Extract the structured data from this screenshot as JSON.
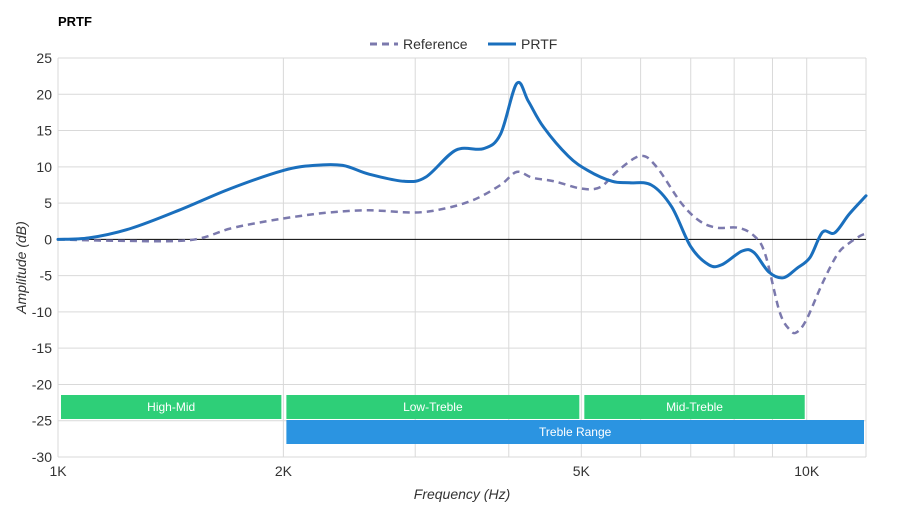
{
  "chart_data": {
    "type": "line",
    "title": "PRTF",
    "xlabel": "Frequency (Hz)",
    "ylabel": "Amplitude (dB)",
    "xscale": "log",
    "xlim": [
      1000,
      12000
    ],
    "ylim": [
      -30,
      25
    ],
    "grid": true,
    "legend_position": "top-center",
    "x_ticks": [
      {
        "value": 1000,
        "label": "1K"
      },
      {
        "value": 2000,
        "label": "2K"
      },
      {
        "value": 5000,
        "label": "5K"
      },
      {
        "value": 10000,
        "label": "10K"
      }
    ],
    "x_minor_gridlines": [
      3000,
      4000,
      6000,
      7000,
      8000,
      9000,
      12000
    ],
    "y_ticks": [
      25,
      20,
      15,
      10,
      5,
      0,
      -5,
      -10,
      -15,
      -20,
      -25,
      -30
    ],
    "series": [
      {
        "name": "Reference",
        "color": "#7b79ad",
        "style": "dashed",
        "points": [
          [
            1000,
            0
          ],
          [
            1200,
            -0.2
          ],
          [
            1500,
            -0.1
          ],
          [
            1700,
            1.5
          ],
          [
            1900,
            2.5
          ],
          [
            2100,
            3.2
          ],
          [
            2300,
            3.7
          ],
          [
            2600,
            4.0
          ],
          [
            3000,
            3.7
          ],
          [
            3300,
            4.3
          ],
          [
            3600,
            5.5
          ],
          [
            3900,
            7.5
          ],
          [
            4100,
            9.3
          ],
          [
            4300,
            8.5
          ],
          [
            4600,
            8.0
          ],
          [
            5000,
            7.0
          ],
          [
            5300,
            7.2
          ],
          [
            5600,
            9.5
          ],
          [
            6000,
            11.5
          ],
          [
            6300,
            10.0
          ],
          [
            6800,
            5.0
          ],
          [
            7200,
            2.5
          ],
          [
            7600,
            1.6
          ],
          [
            8100,
            1.6
          ],
          [
            8500,
            0.5
          ],
          [
            8800,
            -2.0
          ],
          [
            9200,
            -10.0
          ],
          [
            9500,
            -12.5
          ],
          [
            9700,
            -12.8
          ],
          [
            10000,
            -11.0
          ],
          [
            10500,
            -6.0
          ],
          [
            11000,
            -2.0
          ],
          [
            11400,
            -0.5
          ],
          [
            11800,
            0.5
          ],
          [
            12000,
            0.8
          ]
        ]
      },
      {
        "name": "PRTF",
        "color": "#1a6fbd",
        "style": "solid",
        "points": [
          [
            1000,
            0
          ],
          [
            1100,
            0.2
          ],
          [
            1250,
            1.5
          ],
          [
            1450,
            4.0
          ],
          [
            1700,
            7.0
          ],
          [
            2000,
            9.5
          ],
          [
            2200,
            10.2
          ],
          [
            2400,
            10.2
          ],
          [
            2600,
            9.0
          ],
          [
            2900,
            8.0
          ],
          [
            3100,
            8.6
          ],
          [
            3400,
            12.3
          ],
          [
            3700,
            12.5
          ],
          [
            3900,
            14.5
          ],
          [
            4100,
            21.5
          ],
          [
            4250,
            19.0
          ],
          [
            4450,
            15.5
          ],
          [
            4800,
            11.5
          ],
          [
            5100,
            9.5
          ],
          [
            5500,
            8.0
          ],
          [
            5800,
            7.8
          ],
          [
            6200,
            7.5
          ],
          [
            6600,
            4.5
          ],
          [
            7000,
            -1.0
          ],
          [
            7400,
            -3.5
          ],
          [
            7700,
            -3.5
          ],
          [
            8200,
            -1.6
          ],
          [
            8500,
            -1.8
          ],
          [
            8900,
            -4.5
          ],
          [
            9300,
            -5.3
          ],
          [
            9700,
            -4.0
          ],
          [
            10100,
            -2.5
          ],
          [
            10500,
            1.0
          ],
          [
            10900,
            0.9
          ],
          [
            11400,
            3.5
          ],
          [
            12000,
            6.0
          ]
        ]
      }
    ],
    "bands": [
      {
        "label": "High-Mid",
        "from": 1000,
        "to": 2000,
        "row": 0,
        "color": "#2ecf78"
      },
      {
        "label": "Low-Treble",
        "from": 2000,
        "to": 5000,
        "row": 0,
        "color": "#2ecf78"
      },
      {
        "label": "Mid-Treble",
        "from": 5000,
        "to": 10000,
        "row": 0,
        "color": "#2ecf78"
      },
      {
        "label": "Treble Range",
        "from": 2000,
        "to": 12000,
        "row": 1,
        "color": "#2b94e1"
      }
    ]
  }
}
